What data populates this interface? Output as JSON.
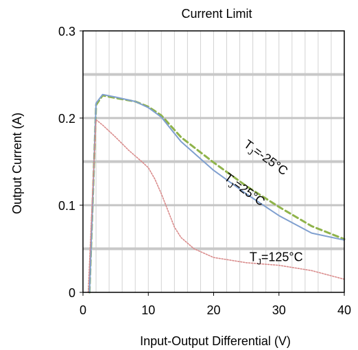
{
  "chart_data": {
    "type": "line",
    "title": "Current Limit",
    "xlabel": "Input-Output Differential (V)",
    "ylabel": "Output Current (A)",
    "xlim": [
      0,
      40
    ],
    "ylim": [
      0,
      0.3
    ],
    "x_ticks": [
      "0",
      "10",
      "20",
      "30",
      "40"
    ],
    "y_ticks": [
      "0",
      "0.1",
      "0.2",
      "0.3"
    ],
    "grid": true,
    "series": [
      {
        "name": "TJ=-25°C",
        "color": "#8fb34a",
        "style": "dashed",
        "x": [
          1.0,
          2.0,
          3.0,
          5.0,
          8.0,
          10.0,
          12.0,
          15.0,
          20.0,
          25.0,
          30.0,
          35.0,
          40.0
        ],
        "y": [
          0.0,
          0.215,
          0.226,
          0.223,
          0.219,
          0.213,
          0.203,
          0.178,
          0.149,
          0.122,
          0.098,
          0.076,
          0.061
        ]
      },
      {
        "name": "TJ=25°C",
        "color": "#7f9fcf",
        "style": "solid",
        "x": [
          1.0,
          2.0,
          3.0,
          5.0,
          8.0,
          10.0,
          12.0,
          15.0,
          20.0,
          25.0,
          30.0,
          35.0,
          40.0
        ],
        "y": [
          0.0,
          0.217,
          0.227,
          0.224,
          0.219,
          0.212,
          0.201,
          0.173,
          0.14,
          0.113,
          0.088,
          0.068,
          0.06
        ]
      },
      {
        "name": "TJ=125°C",
        "color": "#d98a8a",
        "style": "dotted",
        "x": [
          0.8,
          1.5,
          2.0,
          3.0,
          5.0,
          7.0,
          9.0,
          10.0,
          11.0,
          12.0,
          14.0,
          15.0,
          17.0,
          20.0,
          25.0,
          30.0,
          35.0,
          40.0
        ],
        "y": [
          0.0,
          0.12,
          0.198,
          0.192,
          0.178,
          0.163,
          0.15,
          0.143,
          0.13,
          0.113,
          0.075,
          0.063,
          0.05,
          0.04,
          0.034,
          0.031,
          0.025,
          0.015
        ]
      }
    ],
    "annotations": [
      {
        "prefix": "T",
        "sub": "J",
        "suffix": "=-25°C",
        "x": 24.5,
        "y": 0.168,
        "rotate": 36
      },
      {
        "prefix": "T",
        "sub": "J",
        "suffix": "=25°C",
        "x": 21.5,
        "y": 0.13,
        "rotate": 36
      },
      {
        "prefix": "T",
        "sub": "J",
        "suffix": "=125°C",
        "x": 25.5,
        "y": 0.036,
        "rotate": 0
      }
    ]
  }
}
